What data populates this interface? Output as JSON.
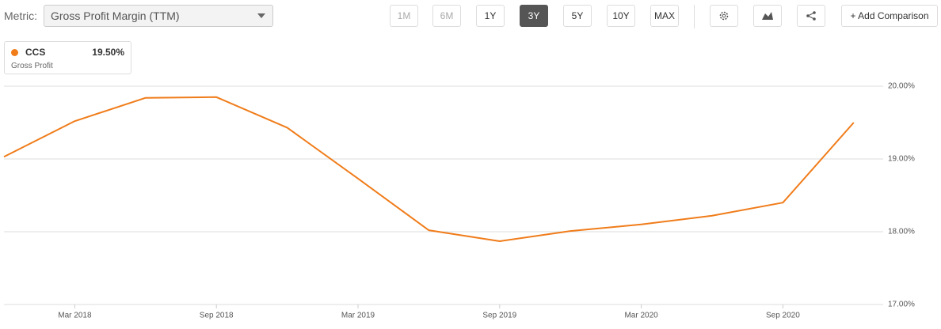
{
  "toolbar": {
    "metric_label": "Metric:",
    "metric_value": "Gross Profit Margin (TTM)",
    "ranges": [
      "1M",
      "6M",
      "1Y",
      "3Y",
      "5Y",
      "10Y",
      "MAX"
    ],
    "add_comparison": "+ Add Comparison"
  },
  "chart_data": {
    "type": "line",
    "categories": [
      null,
      "Mar 2018",
      null,
      "Sep 2018",
      null,
      "Mar 2019",
      null,
      "Sep 2019",
      null,
      "Mar 2020",
      null,
      "Sep 2020",
      null
    ],
    "series": [
      {
        "name": "CCS",
        "description": "Gross Profit",
        "latest": "19.50%",
        "color": "#f07c1a",
        "values": [
          19.03,
          19.52,
          19.84,
          19.85,
          19.43,
          18.73,
          18.02,
          17.87,
          18.01,
          18.1,
          18.22,
          18.4,
          19.5
        ]
      }
    ],
    "ylim": [
      17,
      20
    ],
    "yticks": [
      {
        "value": 17,
        "label": "17.00%"
      },
      {
        "value": 18,
        "label": "18.00%"
      },
      {
        "value": 19,
        "label": "19.00%"
      },
      {
        "value": 20,
        "label": "20.00%"
      }
    ],
    "grid": true
  }
}
